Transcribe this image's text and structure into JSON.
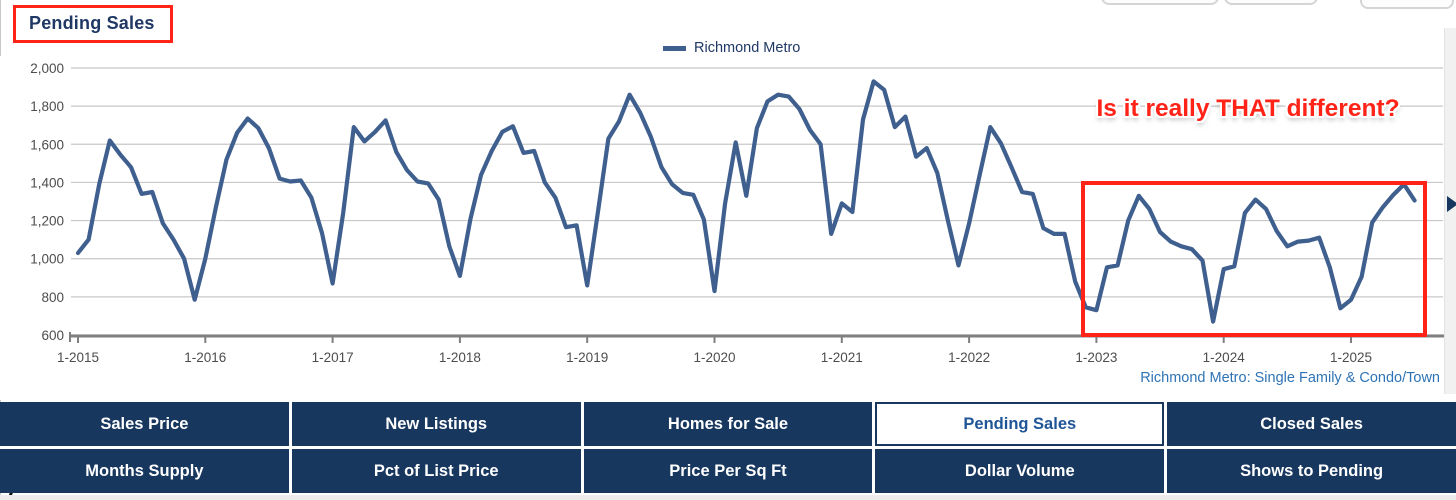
{
  "header": {
    "title": "Pending Sales"
  },
  "legend": {
    "label": "Richmond Metro"
  },
  "annotation": {
    "text": "Is it really THAT different?"
  },
  "footnote": {
    "text": "Richmond Metro: Single Family & Condo/Town"
  },
  "colors": {
    "line": "#3f5f8f",
    "navy": "#17375e",
    "title_navy": "#1f3864",
    "red": "#ff2318",
    "grid": "#c8c8c8",
    "axis": "#7f7f7f",
    "tick_text": "#4d4d4d",
    "footnote_blue": "#2e74b5",
    "active_tab_text": "#1f5597"
  },
  "chart_data": {
    "type": "line",
    "title": "Pending Sales",
    "xlabel": "",
    "ylabel": "",
    "ylim": [
      600,
      2000
    ],
    "y_ticks": [
      600,
      800,
      1000,
      1200,
      1400,
      1600,
      1800,
      2000
    ],
    "x_tick_labels": [
      "1-2015",
      "1-2016",
      "1-2017",
      "1-2018",
      "1-2019",
      "1-2020",
      "1-2021",
      "1-2022",
      "1-2023",
      "1-2024",
      "1-2025"
    ],
    "grid": true,
    "legend_position": "top-center",
    "frequency": "monthly",
    "x_start": "1-2015",
    "x_end": "7-2025",
    "series": [
      {
        "name": "Richmond Metro",
        "values": [
          1030,
          1100,
          1390,
          1620,
          1545,
          1480,
          1340,
          1350,
          1185,
          1100,
          1000,
          785,
          1000,
          1270,
          1520,
          1660,
          1735,
          1685,
          1580,
          1420,
          1405,
          1410,
          1320,
          1135,
          870,
          1240,
          1690,
          1615,
          1665,
          1725,
          1560,
          1465,
          1405,
          1395,
          1310,
          1065,
          910,
          1210,
          1440,
          1565,
          1665,
          1695,
          1555,
          1565,
          1400,
          1320,
          1165,
          1175,
          860,
          1240,
          1630,
          1720,
          1860,
          1765,
          1640,
          1480,
          1390,
          1345,
          1335,
          1205,
          830,
          1290,
          1610,
          1330,
          1685,
          1825,
          1860,
          1850,
          1785,
          1675,
          1600,
          1130,
          1290,
          1245,
          1730,
          1930,
          1885,
          1690,
          1745,
          1535,
          1580,
          1450,
          1200,
          965,
          1185,
          1440,
          1690,
          1605,
          1480,
          1350,
          1340,
          1160,
          1130,
          1130,
          880,
          745,
          730,
          955,
          965,
          1200,
          1330,
          1260,
          1140,
          1090,
          1065,
          1050,
          990,
          670,
          945,
          960,
          1240,
          1310,
          1260,
          1145,
          1065,
          1090,
          1095,
          1110,
          955,
          740,
          785,
          905,
          1190,
          1270,
          1335,
          1390,
          1305
        ]
      }
    ]
  },
  "nav": {
    "rows": [
      {
        "items": [
          {
            "label": "Sales Price",
            "active": false
          },
          {
            "label": "New Listings",
            "active": false
          },
          {
            "label": "Homes for Sale",
            "active": false
          },
          {
            "label": "Pending Sales",
            "active": true
          },
          {
            "label": "Closed Sales",
            "active": false
          }
        ]
      },
      {
        "items": [
          {
            "label": "Months Supply",
            "active": false
          },
          {
            "label": "Pct of List Price",
            "active": false
          },
          {
            "label": "Price Per Sq Ft",
            "active": false
          },
          {
            "label": "Dollar Volume",
            "active": false
          },
          {
            "label": "Shows to Pending",
            "active": false
          }
        ]
      }
    ]
  }
}
